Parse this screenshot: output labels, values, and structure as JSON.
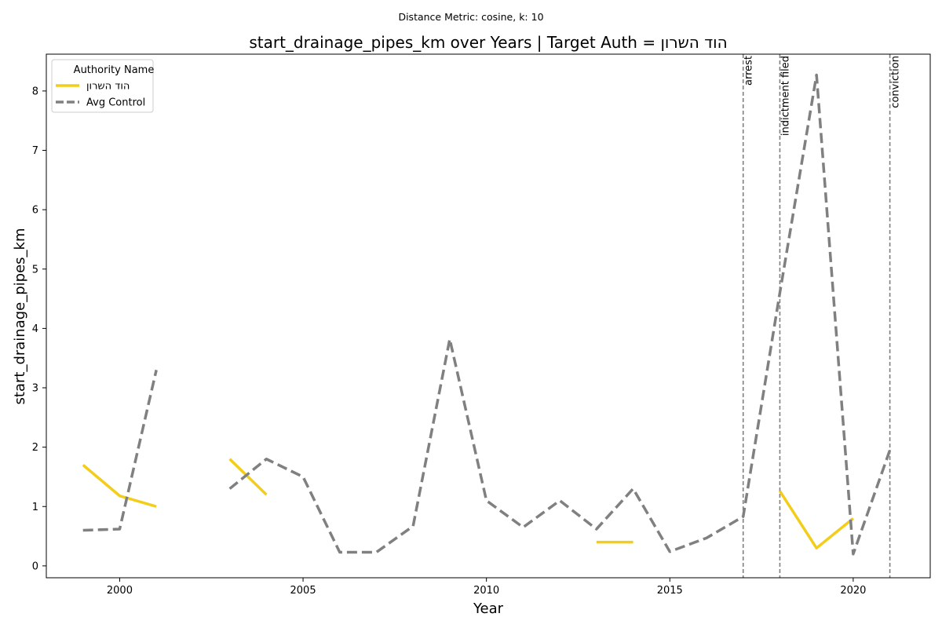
{
  "chart_data": {
    "type": "line",
    "suptitle": "Distance Metric: cosine, k: 10",
    "title": "start_drainage_pipes_km over Years | Target Auth = הוד השרון",
    "xlabel": "Year",
    "ylabel": "start_drainage_pipes_km",
    "xlim": [
      1998,
      2022.1
    ],
    "ylim": [
      -0.2,
      8.62
    ],
    "xticks": [
      2000,
      2005,
      2010,
      2015,
      2020
    ],
    "yticks": [
      0,
      1,
      2,
      3,
      4,
      5,
      6,
      7,
      8
    ],
    "grid": false,
    "legend": {
      "title": "Authority Name",
      "placement": "upper-left"
    },
    "series": [
      {
        "name": "הוד השרון",
        "color": "#f2cd1a",
        "style": "solid",
        "points": [
          [
            1999,
            1.7
          ],
          [
            2000,
            1.18
          ],
          [
            2001,
            1.0
          ],
          [
            2002,
            null
          ],
          [
            2003,
            1.8
          ],
          [
            2004,
            1.2
          ],
          [
            2005,
            null
          ],
          [
            2006,
            null
          ],
          [
            2007,
            null
          ],
          [
            2008,
            null
          ],
          [
            2009,
            null
          ],
          [
            2010,
            null
          ],
          [
            2011,
            null
          ],
          [
            2012,
            null
          ],
          [
            2013,
            0.4
          ],
          [
            2014,
            0.4
          ],
          [
            2015,
            null
          ],
          [
            2016,
            null
          ],
          [
            2017,
            null
          ],
          [
            2018,
            1.26
          ],
          [
            2019,
            0.3
          ],
          [
            2020,
            0.8
          ]
        ]
      },
      {
        "name": "Avg Control",
        "color": "#808080",
        "style": "dashed",
        "points": [
          [
            1999,
            0.6
          ],
          [
            2000,
            0.62
          ],
          [
            2001,
            3.3
          ],
          [
            2002,
            null
          ],
          [
            2003,
            1.3
          ],
          [
            2004,
            1.8
          ],
          [
            2005,
            1.5
          ],
          [
            2006,
            0.23
          ],
          [
            2007,
            0.23
          ],
          [
            2008,
            0.67
          ],
          [
            2009,
            3.82
          ],
          [
            2010,
            1.1
          ],
          [
            2011,
            0.65
          ],
          [
            2012,
            1.1
          ],
          [
            2013,
            0.62
          ],
          [
            2014,
            1.3
          ],
          [
            2015,
            0.24
          ],
          [
            2016,
            0.47
          ],
          [
            2017,
            0.83
          ],
          [
            2018,
            4.6
          ],
          [
            2019,
            8.27
          ],
          [
            2020,
            0.2
          ],
          [
            2021,
            1.95
          ]
        ]
      }
    ],
    "events": [
      {
        "year": 2017,
        "label": "arrest"
      },
      {
        "year": 2018,
        "label": "indictment filed"
      },
      {
        "year": 2021,
        "label": "conviction"
      }
    ]
  }
}
